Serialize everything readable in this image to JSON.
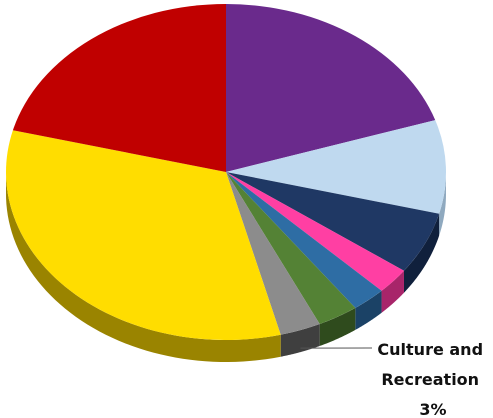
{
  "chart_data": {
    "type": "pie",
    "style": "3d-tilted",
    "slices": [
      {
        "key": "purple",
        "value": 20,
        "color": "#6A2A8C",
        "side_color": "#3E1756"
      },
      {
        "key": "lightblue",
        "value": 9,
        "color": "#BFD9EF",
        "side_color": "#8FA9BF"
      },
      {
        "key": "navy",
        "value": 6,
        "color": "#1F3864",
        "side_color": "#10203C"
      },
      {
        "key": "pink",
        "value": 2.5,
        "color": "#FF3FA3",
        "side_color": "#A8256A"
      },
      {
        "key": "blue",
        "value": 2.5,
        "color": "#2E6DA4",
        "side_color": "#1B4266"
      },
      {
        "key": "green",
        "value": 3,
        "color": "#548235",
        "side_color": "#2F4B1D"
      },
      {
        "key": "culture",
        "value": 3,
        "color": "#8C8C8C",
        "side_color": "#3F3F3F"
      },
      {
        "key": "yellow",
        "value": 33,
        "color": "#FFDD00",
        "side_color": "#9A8400"
      },
      {
        "key": "red",
        "value": 21,
        "color": "#C00000",
        "side_color": "#7A0000"
      }
    ],
    "labels": [
      {
        "slice": "culture",
        "lines": [
          "Culture and",
          "Recreation",
          "3%"
        ]
      }
    ]
  }
}
